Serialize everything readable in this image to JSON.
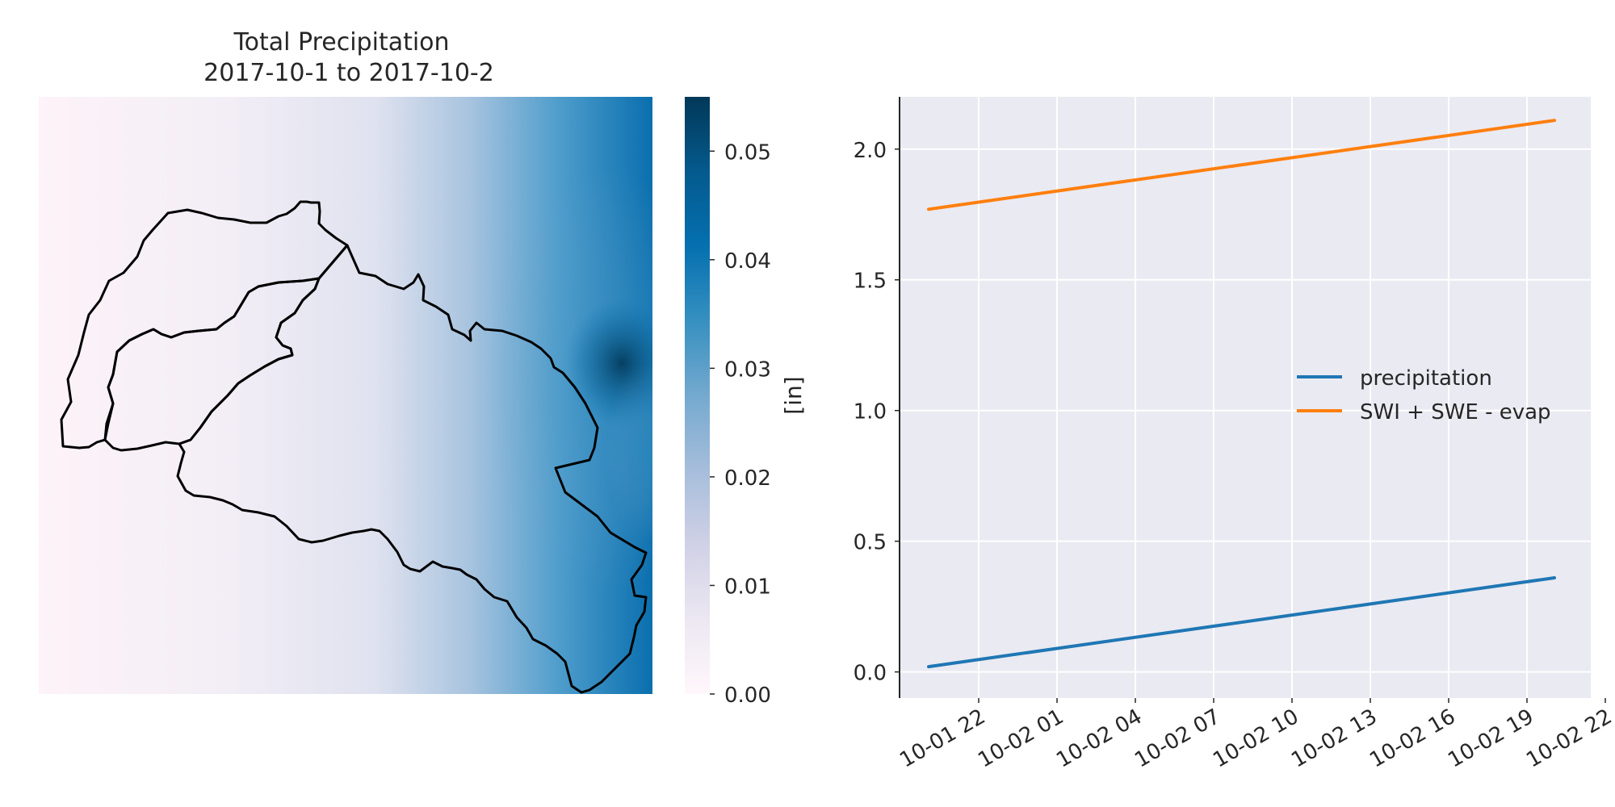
{
  "chart_data": [
    {
      "type": "heatmap",
      "title": "Total Precipitation",
      "subtitle": "2017-10-1 to 2017-10-2",
      "colorbar": {
        "label": "[in]",
        "ticks": [
          "0.00",
          "0.01",
          "0.02",
          "0.03",
          "0.04",
          "0.05"
        ],
        "range": [
          0,
          0.055
        ],
        "colormap": [
          "#fff7fb",
          "#ece7f2",
          "#d0d1e6",
          "#a6bddb",
          "#74a9cf",
          "#3690c0",
          "#0570b0",
          "#045a8d",
          "#023858"
        ]
      },
      "outline_color": "#000000",
      "description_of_field": "values increase from west (near 0) to east (max ~0.055 at the eastern edge)"
    },
    {
      "type": "line",
      "x": [
        "10-01 22",
        "10-02 22"
      ],
      "x_ticks": [
        "10-01 22",
        "10-02 01",
        "10-02 04",
        "10-02 07",
        "10-02 10",
        "10-02 13",
        "10-02 16",
        "10-02 19",
        "10-02 22"
      ],
      "y_ticks": [
        "0.0",
        "0.5",
        "1.0",
        "1.5",
        "2.0"
      ],
      "ylim": [
        -0.1,
        2.2
      ],
      "series": [
        {
          "name": "precipitation",
          "color": "#1f77b4",
          "values": [
            0.02,
            0.36
          ]
        },
        {
          "name": "SWI + SWE - evap",
          "color": "#ff7f0e",
          "values": [
            1.77,
            2.11
          ]
        }
      ],
      "legend_placement": "center-right",
      "grid": true,
      "background": "#eaeaf2"
    }
  ]
}
